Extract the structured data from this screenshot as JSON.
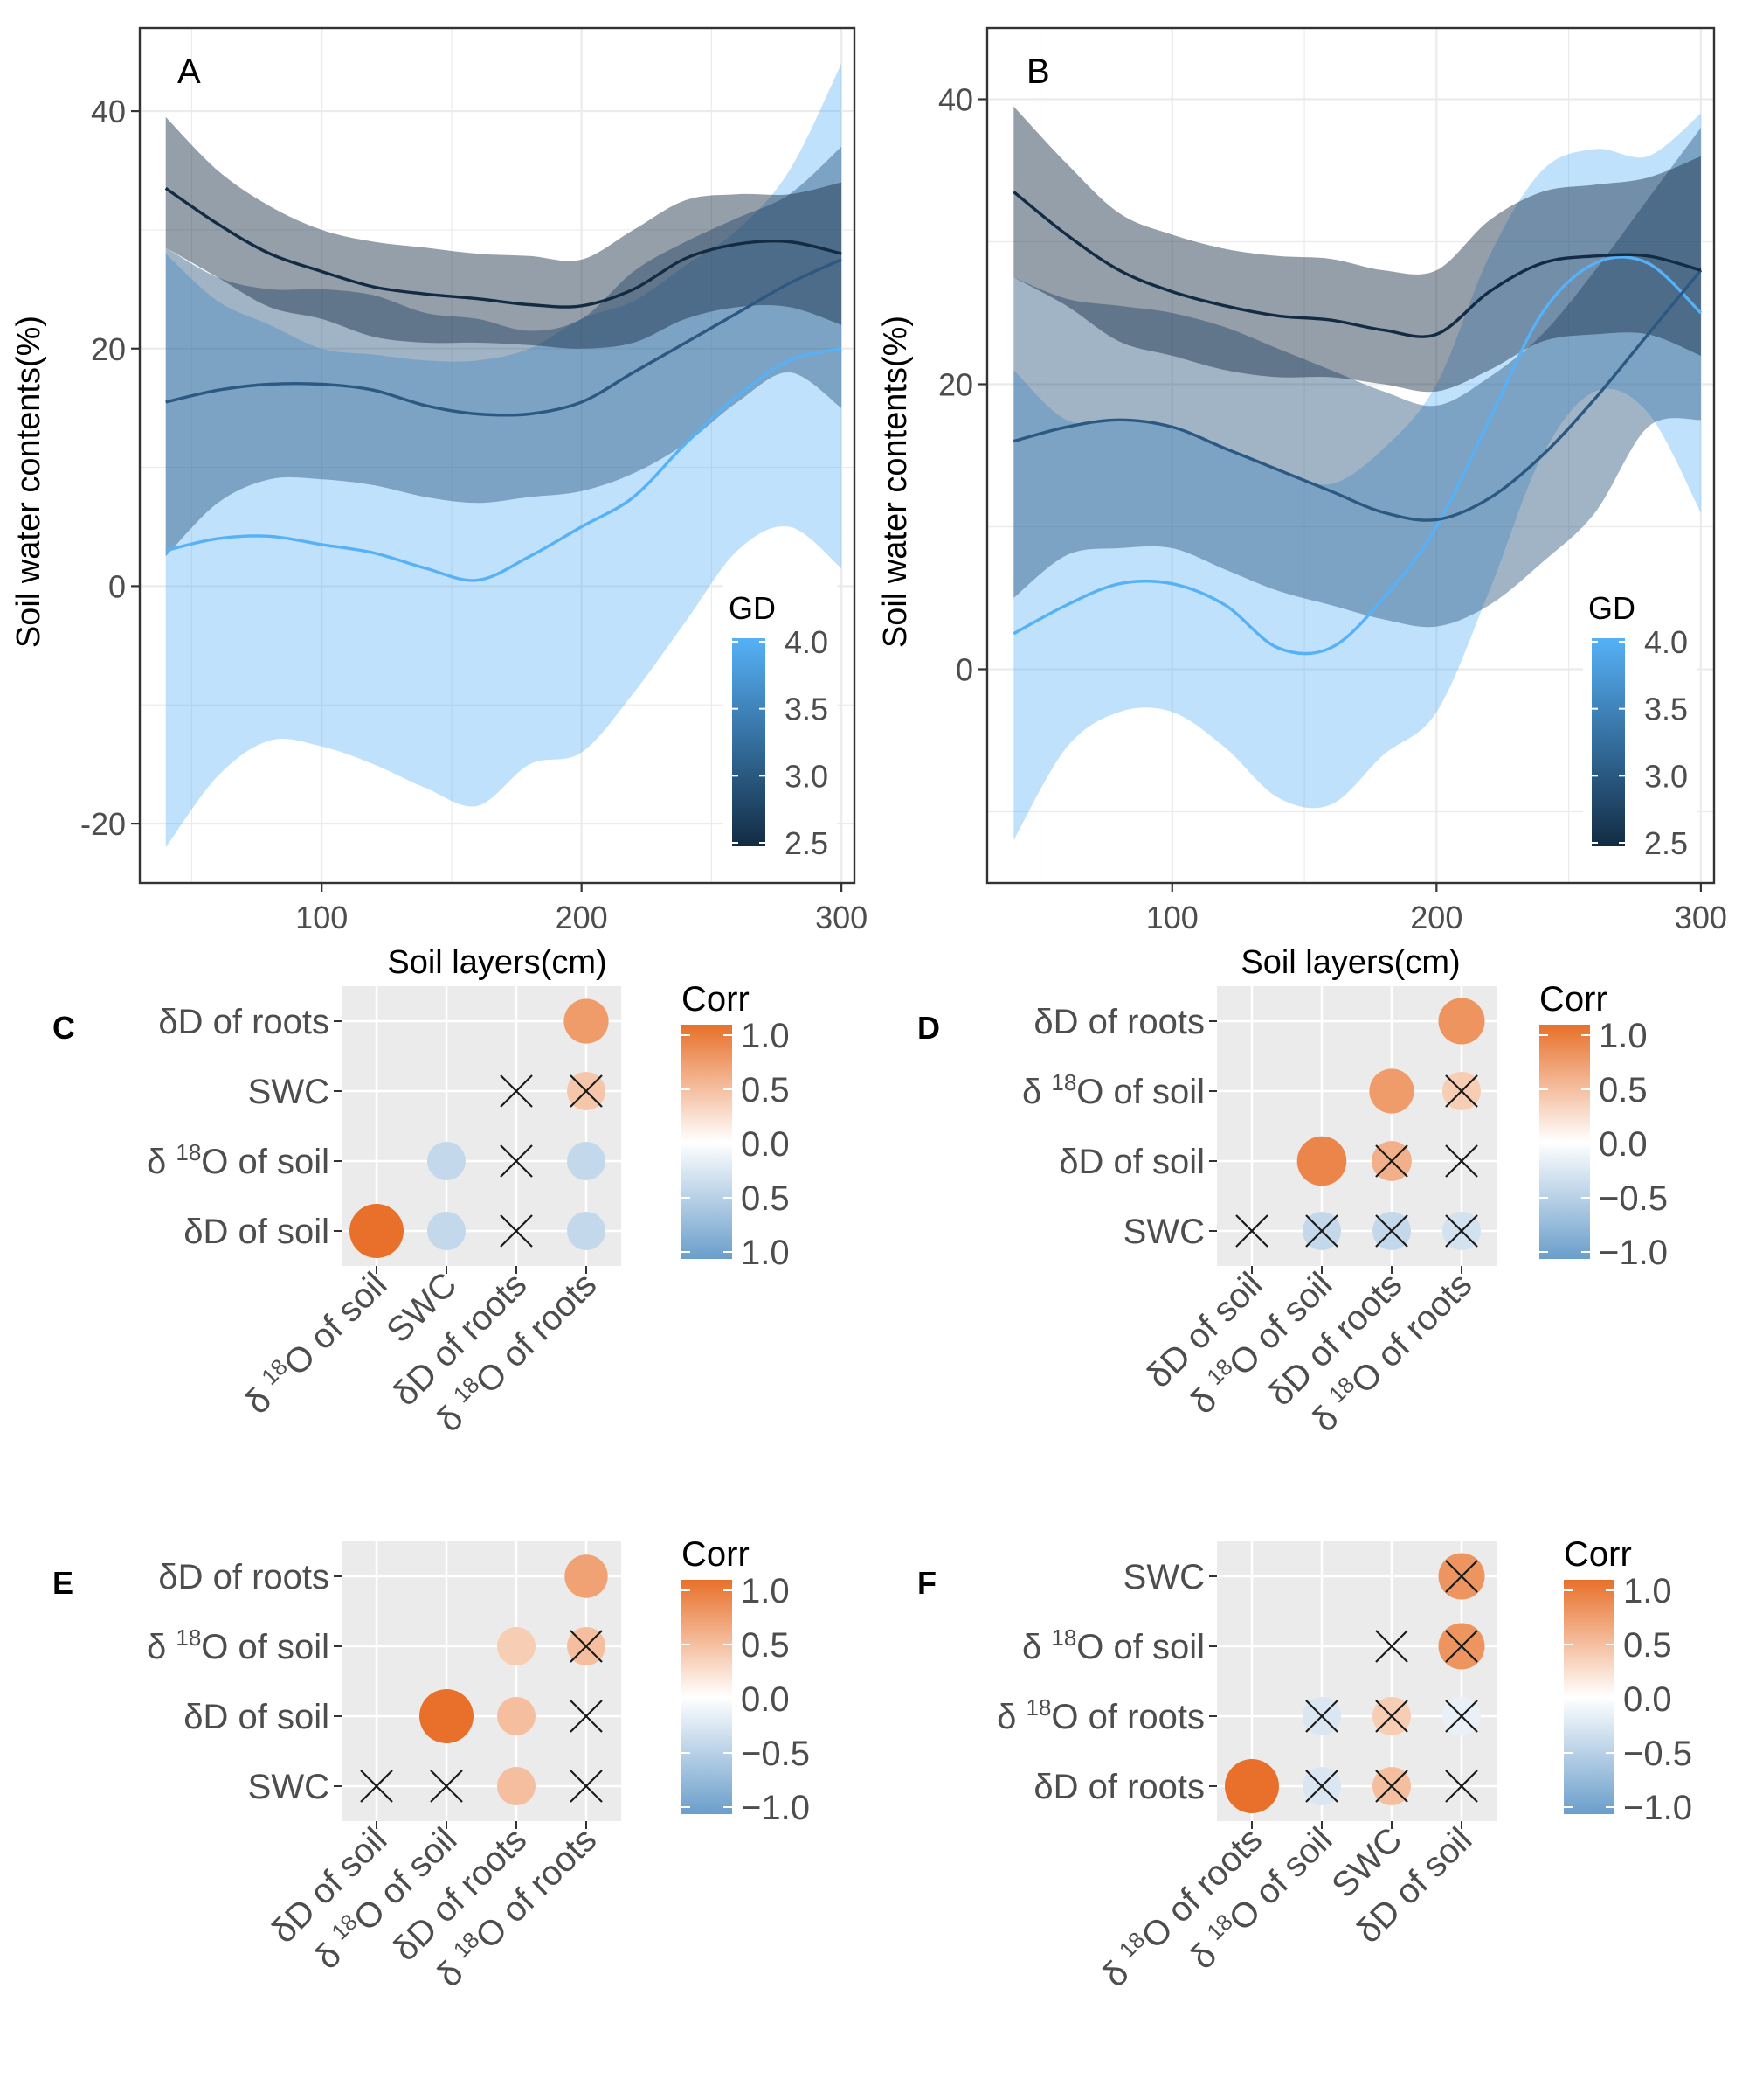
{
  "chart_data": [
    {
      "panel": "A",
      "type": "line",
      "title": "",
      "xlabel": "Soil layers(cm)",
      "ylabel": "Soil water contents(%)",
      "xlim": [
        30,
        305
      ],
      "ylim": [
        -25,
        47
      ],
      "xticks": [
        "100",
        "200",
        "300"
      ],
      "yticks": [
        "-20",
        "0",
        "20",
        "40"
      ],
      "legend": {
        "title": "GD",
        "min": 2.5,
        "max": 4.0,
        "ticks": [
          "4.0",
          "3.5",
          "3.0",
          "2.5"
        ],
        "low_color": "#132B43",
        "high_color": "#56B1F7"
      },
      "series": [
        {
          "name": "GD 2.5",
          "color": "#132B43",
          "x": [
            40,
            60,
            80,
            100,
            120,
            140,
            160,
            180,
            200,
            220,
            240,
            260,
            280,
            300
          ],
          "y": [
            33.5,
            30.5,
            28.0,
            26.5,
            25.2,
            24.6,
            24.2,
            23.7,
            23.6,
            25.0,
            27.6,
            28.8,
            29.0,
            28.0
          ],
          "lo": [
            28.5,
            26.0,
            23.5,
            22.5,
            21.0,
            20.5,
            20.5,
            20.3,
            20.0,
            20.5,
            22.5,
            23.5,
            23.5,
            22.0
          ],
          "hi": [
            39.5,
            35.0,
            32.0,
            30.0,
            29.0,
            28.5,
            28.0,
            27.8,
            27.5,
            30.0,
            32.5,
            33.0,
            33.0,
            34.0
          ]
        },
        {
          "name": "GD 3.0",
          "color": "#2C5981",
          "x": [
            40,
            60,
            80,
            100,
            120,
            140,
            160,
            180,
            200,
            220,
            240,
            260,
            280,
            300
          ],
          "y": [
            15.5,
            16.5,
            17.0,
            17.0,
            16.5,
            15.2,
            14.5,
            14.5,
            15.5,
            18.0,
            20.5,
            23.0,
            25.5,
            27.5
          ],
          "lo": [
            2.5,
            7.0,
            9.0,
            9.0,
            8.5,
            7.5,
            7.0,
            7.5,
            8.0,
            9.5,
            12.0,
            15.5,
            18.0,
            15.0
          ],
          "hi": [
            28.5,
            26.0,
            25.0,
            25.0,
            24.5,
            23.0,
            22.5,
            21.5,
            22.5,
            26.5,
            29.0,
            31.0,
            33.0,
            37.0
          ]
        },
        {
          "name": "GD 4.0",
          "color": "#56B1F7",
          "x": [
            40,
            60,
            80,
            100,
            120,
            140,
            160,
            180,
            200,
            220,
            240,
            260,
            280,
            300
          ],
          "y": [
            3.0,
            4.0,
            4.2,
            3.5,
            2.8,
            1.5,
            0.5,
            2.5,
            5.0,
            7.5,
            12.0,
            16.0,
            19.0,
            20.0
          ],
          "lo": [
            -22.0,
            -16.0,
            -13.0,
            -13.5,
            -15.0,
            -17.0,
            -18.5,
            -15.0,
            -14.0,
            -9.0,
            -3.0,
            3.0,
            5.0,
            1.5
          ],
          "hi": [
            28.0,
            24.0,
            22.0,
            20.0,
            19.5,
            19.0,
            19.0,
            20.0,
            22.5,
            24.0,
            27.0,
            30.0,
            35.0,
            44.0
          ]
        }
      ]
    },
    {
      "panel": "B",
      "type": "line",
      "title": "",
      "xlabel": "Soil layers(cm)",
      "ylabel": "Soil water contents(%)",
      "xlim": [
        30,
        305
      ],
      "ylim": [
        -15,
        45
      ],
      "xticks": [
        "100",
        "200",
        "300"
      ],
      "yticks": [
        "0",
        "20",
        "40"
      ],
      "legend": {
        "title": "GD",
        "min": 2.5,
        "max": 4.0,
        "ticks": [
          "4.0",
          "3.5",
          "3.0",
          "2.5"
        ],
        "low_color": "#132B43",
        "high_color": "#56B1F7"
      },
      "series": [
        {
          "name": "GD 2.5",
          "color": "#132B43",
          "x": [
            40,
            60,
            80,
            100,
            120,
            140,
            160,
            180,
            200,
            220,
            240,
            260,
            280,
            300
          ],
          "y": [
            33.5,
            30.5,
            28.0,
            26.5,
            25.5,
            24.8,
            24.5,
            23.8,
            23.5,
            26.5,
            28.5,
            29.0,
            29.0,
            28.0
          ],
          "lo": [
            27.5,
            25.5,
            23.0,
            22.0,
            21.0,
            20.5,
            20.5,
            20.0,
            19.5,
            21.0,
            23.0,
            23.5,
            23.5,
            22.0
          ],
          "hi": [
            39.5,
            35.5,
            32.0,
            30.5,
            29.5,
            29.0,
            28.8,
            28.0,
            28.0,
            31.5,
            33.5,
            34.0,
            34.5,
            36.0
          ]
        },
        {
          "name": "GD 3.0",
          "color": "#2C5981",
          "x": [
            40,
            60,
            80,
            100,
            120,
            140,
            160,
            180,
            200,
            220,
            240,
            260,
            280,
            300
          ],
          "y": [
            16.0,
            17.0,
            17.5,
            17.0,
            15.5,
            14.0,
            12.5,
            11.0,
            10.5,
            12.0,
            15.0,
            19.0,
            23.5,
            28.0
          ],
          "lo": [
            5.0,
            8.0,
            8.5,
            8.5,
            7.0,
            5.5,
            4.5,
            3.5,
            3.0,
            4.5,
            7.5,
            11.0,
            17.0,
            17.5
          ],
          "hi": [
            27.5,
            26.0,
            25.5,
            25.0,
            24.0,
            22.5,
            21.0,
            19.5,
            18.5,
            20.5,
            23.5,
            28.0,
            33.0,
            38.0
          ]
        },
        {
          "name": "GD 4.0",
          "color": "#56B1F7",
          "x": [
            40,
            60,
            80,
            100,
            120,
            140,
            160,
            180,
            200,
            220,
            240,
            260,
            280,
            300
          ],
          "y": [
            2.5,
            4.5,
            6.0,
            6.0,
            4.5,
            1.5,
            1.5,
            5.0,
            10.0,
            17.5,
            25.0,
            28.5,
            28.5,
            25.0
          ],
          "lo": [
            -12.0,
            -5.5,
            -3.0,
            -3.0,
            -5.5,
            -9.0,
            -9.5,
            -6.0,
            -3.0,
            5.5,
            15.0,
            19.5,
            18.0,
            11.0
          ],
          "hi": [
            21.0,
            17.5,
            17.5,
            17.0,
            15.5,
            14.0,
            13.0,
            15.5,
            20.0,
            29.0,
            35.0,
            36.5,
            36.0,
            39.0
          ]
        }
      ]
    },
    {
      "panel": "C",
      "type": "heatmap",
      "legend_title": "Corr",
      "legend_ticks": [
        "1.0",
        "0.5",
        "0.0",
        "0.5",
        "1.0"
      ],
      "row_labels": [
        "δD of roots",
        "SWC",
        "δ 18O of soil",
        "δD of soil"
      ],
      "col_labels": [
        "δ 18O of soil",
        "SWC",
        "δD of roots",
        "δ 18O of roots"
      ],
      "cells": [
        {
          "row": 0,
          "col": 3,
          "r": 0.7,
          "x": false
        },
        {
          "row": 1,
          "col": 2,
          "r": 0.0,
          "x": true
        },
        {
          "row": 1,
          "col": 3,
          "r": 0.4,
          "x": true
        },
        {
          "row": 2,
          "col": 1,
          "r": -0.4,
          "x": false
        },
        {
          "row": 2,
          "col": 2,
          "r": 0.0,
          "x": true
        },
        {
          "row": 2,
          "col": 3,
          "r": -0.4,
          "x": false
        },
        {
          "row": 3,
          "col": 0,
          "r": 1.0,
          "x": false
        },
        {
          "row": 3,
          "col": 1,
          "r": -0.4,
          "x": false
        },
        {
          "row": 3,
          "col": 2,
          "r": 0.0,
          "x": true
        },
        {
          "row": 3,
          "col": 3,
          "r": -0.4,
          "x": false
        }
      ]
    },
    {
      "panel": "D",
      "type": "heatmap",
      "legend_title": "Corr",
      "legend_ticks": [
        "1.0",
        "0.5",
        "0.0",
        "−0.5",
        "−1.0"
      ],
      "row_labels": [
        "δD of roots",
        "δ 18O of soil",
        "δD of soil",
        "SWC"
      ],
      "col_labels": [
        "δD of soil",
        "δ 18O of soil",
        "δD of roots",
        "δ 18O of roots"
      ],
      "cells": [
        {
          "row": 0,
          "col": 3,
          "r": 0.75,
          "x": false
        },
        {
          "row": 1,
          "col": 2,
          "r": 0.7,
          "x": false
        },
        {
          "row": 1,
          "col": 3,
          "r": 0.35,
          "x": true
        },
        {
          "row": 2,
          "col": 1,
          "r": 0.85,
          "x": false
        },
        {
          "row": 2,
          "col": 2,
          "r": 0.55,
          "x": true
        },
        {
          "row": 2,
          "col": 3,
          "r": 0.0,
          "x": true
        },
        {
          "row": 3,
          "col": 0,
          "r": 0.0,
          "x": true
        },
        {
          "row": 3,
          "col": 1,
          "r": -0.4,
          "x": true
        },
        {
          "row": 3,
          "col": 2,
          "r": -0.4,
          "x": true
        },
        {
          "row": 3,
          "col": 3,
          "r": -0.3,
          "x": true
        }
      ]
    },
    {
      "panel": "E",
      "type": "heatmap",
      "legend_title": "Corr",
      "legend_ticks": [
        "1.0",
        "0.5",
        "0.0",
        "−0.5",
        "−1.0"
      ],
      "row_labels": [
        "δD of roots",
        "δ 18O of soil",
        "δD of soil",
        "SWC"
      ],
      "col_labels": [
        "δD of soil",
        "δ 18O of soil",
        "δD of roots",
        "δ 18O of roots"
      ],
      "cells": [
        {
          "row": 0,
          "col": 3,
          "r": 0.65,
          "x": false
        },
        {
          "row": 1,
          "col": 2,
          "r": 0.35,
          "x": false
        },
        {
          "row": 1,
          "col": 3,
          "r": 0.45,
          "x": true
        },
        {
          "row": 2,
          "col": 1,
          "r": 1.0,
          "x": false
        },
        {
          "row": 2,
          "col": 2,
          "r": 0.45,
          "x": false
        },
        {
          "row": 2,
          "col": 3,
          "r": 0.0,
          "x": true
        },
        {
          "row": 3,
          "col": 0,
          "r": 0.0,
          "x": true
        },
        {
          "row": 3,
          "col": 1,
          "r": 0.0,
          "x": true
        },
        {
          "row": 3,
          "col": 2,
          "r": 0.45,
          "x": false
        },
        {
          "row": 3,
          "col": 3,
          "r": 0.0,
          "x": true
        }
      ]
    },
    {
      "panel": "F",
      "type": "heatmap",
      "legend_title": "Corr",
      "legend_ticks": [
        "1.0",
        "0.5",
        "0.0",
        "−0.5",
        "−1.0"
      ],
      "row_labels": [
        "SWC",
        "δ 18O of soil",
        "δ 18O of roots",
        "δD of roots"
      ],
      "col_labels": [
        "δ 18O of roots",
        "δ 18O of soil",
        "SWC",
        "δD of soil"
      ],
      "cells": [
        {
          "row": 0,
          "col": 3,
          "r": 0.75,
          "x": true
        },
        {
          "row": 1,
          "col": 2,
          "r": 0.0,
          "x": true
        },
        {
          "row": 1,
          "col": 3,
          "r": 0.75,
          "x": true
        },
        {
          "row": 2,
          "col": 1,
          "r": -0.25,
          "x": true
        },
        {
          "row": 2,
          "col": 2,
          "r": 0.35,
          "x": true
        },
        {
          "row": 2,
          "col": 3,
          "r": -0.15,
          "x": true
        },
        {
          "row": 3,
          "col": 0,
          "r": 1.0,
          "x": false
        },
        {
          "row": 3,
          "col": 1,
          "r": -0.25,
          "x": true
        },
        {
          "row": 3,
          "col": 2,
          "r": 0.45,
          "x": true
        },
        {
          "row": 3,
          "col": 3,
          "r": 0.0,
          "x": true
        }
      ]
    }
  ],
  "colors": {
    "panel_bg_grid": "#EBEBEB",
    "corr_pos": "#E8702A",
    "corr_mid": "#FFFFFF",
    "corr_neg": "#6A9ECB"
  }
}
